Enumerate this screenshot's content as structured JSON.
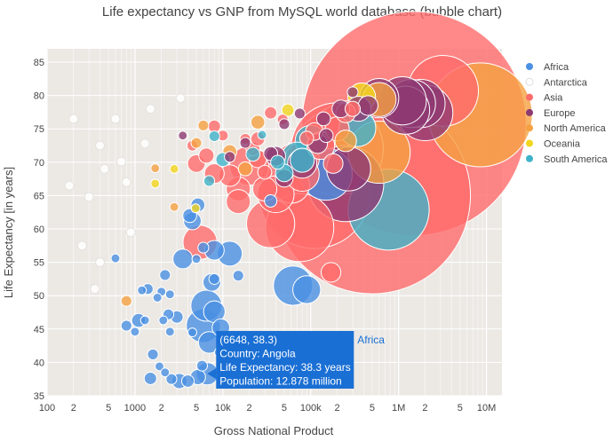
{
  "chart_data": {
    "type": "scatter",
    "subtype": "bubble",
    "title": "Life expectancy vs GNP from MySQL world database (bubble chart)",
    "xlabel": "Gross National Product",
    "ylabel": "Life Expectancy [in years]",
    "x_scale": "log",
    "xlim": [
      100,
      15000000
    ],
    "ylim": [
      35,
      87
    ],
    "x_ticks": [
      {
        "v": 100,
        "label": "100"
      },
      {
        "v": 200,
        "label": "2"
      },
      {
        "v": 500,
        "label": "5"
      },
      {
        "v": 1000,
        "label": "1000"
      },
      {
        "v": 2000,
        "label": "2"
      },
      {
        "v": 5000,
        "label": "5"
      },
      {
        "v": 10000,
        "label": "10k"
      },
      {
        "v": 20000,
        "label": "2"
      },
      {
        "v": 50000,
        "label": "5"
      },
      {
        "v": 100000,
        "label": "100k"
      },
      {
        "v": 200000,
        "label": "2"
      },
      {
        "v": 500000,
        "label": "5"
      },
      {
        "v": 1000000,
        "label": "1M"
      },
      {
        "v": 2000000,
        "label": "2"
      },
      {
        "v": 5000000,
        "label": "5"
      },
      {
        "v": 10000000,
        "label": "10M"
      }
    ],
    "y_ticks": [
      35,
      40,
      45,
      50,
      55,
      60,
      65,
      70,
      75,
      80,
      85
    ],
    "legend_position": "right",
    "series": [
      {
        "name": "Africa",
        "color": "#4a90e2",
        "points": [
          [
            6648,
            38.3,
            12.878
          ],
          [
            5200,
            37.8,
            6
          ],
          [
            4000,
            37.2,
            4
          ],
          [
            3200,
            37.2,
            6
          ],
          [
            2600,
            37.5,
            3
          ],
          [
            1500,
            37.6,
            4
          ],
          [
            1600,
            41.2,
            3
          ],
          [
            1900,
            39.4,
            2
          ],
          [
            2200,
            38.5,
            2
          ],
          [
            5800,
            39.5,
            3
          ],
          [
            6000,
            45.5,
            30
          ],
          [
            7000,
            43.0,
            12
          ],
          [
            9000,
            41.5,
            2
          ],
          [
            4500,
            44.5,
            2
          ],
          [
            3000,
            46.8,
            4
          ],
          [
            2400,
            47.2,
            3
          ],
          [
            2100,
            46.3,
            2
          ],
          [
            2500,
            44.6,
            2
          ],
          [
            1100,
            46.3,
            5
          ],
          [
            800,
            45.5,
            3
          ],
          [
            1000,
            44.6,
            2
          ],
          [
            6500,
            48.5,
            25
          ],
          [
            8000,
            47.6,
            12
          ],
          [
            9500,
            45.2,
            8
          ],
          [
            7500,
            52.0,
            8
          ],
          [
            8000,
            56.8,
            10
          ],
          [
            12000,
            56.3,
            16
          ],
          [
            15000,
            53.0,
            3
          ],
          [
            6000,
            57.2,
            3
          ],
          [
            5000,
            55.5,
            2
          ],
          [
            8000,
            52.5,
            3
          ],
          [
            3500,
            55.5,
            10
          ],
          [
            1400,
            51.0,
            3
          ],
          [
            1200,
            50.8,
            2
          ],
          [
            2000,
            50.6,
            2
          ],
          [
            2500,
            50.2,
            2
          ],
          [
            1800,
            49.7,
            2
          ],
          [
            600,
            55.6,
            2
          ],
          [
            2200,
            53.1,
            3
          ],
          [
            1300,
            46.3,
            2
          ],
          [
            63000,
            51.5,
            40
          ],
          [
            90000,
            50.9,
            20
          ],
          [
            35000,
            64.2,
            4
          ],
          [
            150000,
            68.2,
            70
          ],
          [
            4500,
            61.2,
            8
          ],
          [
            4200,
            62.0,
            5
          ],
          [
            5200,
            63.6,
            5
          ]
        ]
      },
      {
        "name": "Antarctica",
        "color": "#ffffff",
        "points": [
          [
            200,
            76.5,
            2
          ],
          [
            400,
            72.5,
            2
          ],
          [
            300,
            64.8,
            2
          ],
          [
            700,
            70.1,
            2
          ],
          [
            400,
            55.0,
            2
          ],
          [
            350,
            51.0,
            2
          ],
          [
            250,
            57.5,
            2
          ],
          [
            900,
            59.5,
            2
          ],
          [
            1300,
            72.8,
            2
          ],
          [
            600,
            76.5,
            2
          ],
          [
            800,
            67.0,
            2
          ],
          [
            1500,
            78.0,
            2
          ],
          [
            180,
            66.5,
            2
          ],
          [
            450,
            69.0,
            2
          ],
          [
            3300,
            79.6,
            2
          ]
        ]
      },
      {
        "name": "Asia",
        "color": "#ff6b6b",
        "points": [
          [
            500000,
            65.0,
            1000
          ],
          [
            1500000,
            75.8,
            1300
          ],
          [
            3200000,
            80.7,
            130
          ],
          [
            200000,
            72.0,
            220
          ],
          [
            110000,
            65.4,
            320
          ],
          [
            75000,
            60.2,
            120
          ],
          [
            60000,
            66.6,
            35
          ],
          [
            35000,
            60.8,
            60
          ],
          [
            20000,
            69.5,
            40
          ],
          [
            40000,
            65.2,
            35
          ],
          [
            15000,
            66.0,
            15
          ],
          [
            5500,
            58.0,
            30
          ],
          [
            15000,
            64.1,
            15
          ],
          [
            30000,
            66.0,
            15
          ],
          [
            80000,
            70.5,
            30
          ],
          [
            80000,
            68.2,
            30
          ],
          [
            12000,
            68.0,
            12
          ],
          [
            8000,
            68.3,
            10
          ],
          [
            5000,
            69.8,
            8
          ],
          [
            6500,
            71.0,
            6
          ],
          [
            8000,
            75.4,
            4
          ],
          [
            10000,
            74.0,
            3
          ],
          [
            18000,
            73.5,
            3
          ],
          [
            22000,
            72.0,
            5
          ],
          [
            25000,
            70.5,
            8
          ],
          [
            35000,
            77.4,
            4
          ],
          [
            48000,
            76.4,
            3
          ],
          [
            110000,
            74.6,
            8
          ],
          [
            130000,
            72.5,
            20
          ],
          [
            200000,
            75.0,
            15
          ],
          [
            250000,
            77.4,
            10
          ],
          [
            300000,
            78.0,
            6
          ],
          [
            170000,
            53.5,
            10
          ],
          [
            180000,
            69.8,
            10
          ],
          [
            4500,
            72.5,
            3
          ],
          [
            90000,
            73.6,
            5
          ],
          [
            25000,
            73.5,
            5
          ],
          [
            30000,
            68.5,
            5
          ]
        ]
      },
      {
        "name": "Europe",
        "color": "#8e3a73",
        "points": [
          [
            1800000,
            78.8,
            60
          ],
          [
            1400000,
            78.8,
            60
          ],
          [
            1200000,
            77.8,
            60
          ],
          [
            2000000,
            77.4,
            80
          ],
          [
            1100000,
            79.2,
            60
          ],
          [
            250000,
            66.8,
            150
          ],
          [
            270000,
            69.0,
            50
          ],
          [
            350000,
            78.0,
            16
          ],
          [
            450000,
            78.5,
            10
          ],
          [
            300000,
            80.5,
            3
          ],
          [
            600000,
            79.6,
            40
          ],
          [
            220000,
            78.0,
            8
          ],
          [
            140000,
            76.5,
            5
          ],
          [
            120000,
            72.8,
            10
          ],
          [
            150000,
            74.0,
            5
          ],
          [
            75000,
            77.3,
            3
          ],
          [
            50000,
            75.7,
            3
          ],
          [
            40000,
            70.9,
            10
          ],
          [
            35000,
            71.3,
            5
          ],
          [
            18000,
            72.9,
            3
          ],
          [
            12000,
            70.8,
            3
          ],
          [
            3500,
            74.0,
            2
          ],
          [
            80000,
            69.8,
            22
          ],
          [
            50000,
            67.6,
            8
          ]
        ]
      },
      {
        "name": "North America",
        "color": "#f5a142",
        "points": [
          [
            8500000,
            77.1,
            280
          ],
          [
            600000,
            79.4,
            30
          ],
          [
            600000,
            71.5,
            100
          ],
          [
            25000,
            76.0,
            5
          ],
          [
            18000,
            69.0,
            5
          ],
          [
            12000,
            71.6,
            5
          ],
          [
            6000,
            75.5,
            3
          ],
          [
            5000,
            72.9,
            3
          ],
          [
            2800,
            63.3,
            2
          ],
          [
            1700,
            69.1,
            2
          ],
          [
            800,
            49.2,
            3
          ],
          [
            250000,
            73.2,
            12
          ]
        ]
      },
      {
        "name": "Oceania",
        "color": "#f2d61e",
        "points": [
          [
            380000,
            79.8,
            20
          ],
          [
            55000,
            77.8,
            4
          ],
          [
            4900,
            63.1,
            2
          ],
          [
            1700,
            66.8,
            2
          ],
          [
            2800,
            69.0,
            2
          ]
        ]
      },
      {
        "name": "South America",
        "color": "#3fb3c9",
        "points": [
          [
            770000,
            62.9,
            170
          ],
          [
            340000,
            75.1,
            35
          ],
          [
            80000,
            70.3,
            15
          ],
          [
            100000,
            73.2,
            25
          ],
          [
            70000,
            70.7,
            25
          ],
          [
            50000,
            68.4,
            8
          ],
          [
            22000,
            71.2,
            5
          ],
          [
            10000,
            70.4,
            5
          ],
          [
            8000,
            73.9,
            3
          ],
          [
            42000,
            70.0,
            5
          ],
          [
            28000,
            74.1,
            2
          ],
          [
            7000,
            67.2,
            3
          ]
        ]
      }
    ],
    "tooltip": {
      "x": 6648,
      "y": 38.3,
      "coords": "(6648, 38.3)",
      "country": "Country: Angola",
      "life": "Life Expectancy: 38.3 years",
      "population": "Population: 12.878 million",
      "group": "Africa",
      "color": "#1a6fd4"
    },
    "colors": {
      "plot_bg": "#ece9e5",
      "grid": "#ffffff",
      "text": "#444444"
    }
  }
}
